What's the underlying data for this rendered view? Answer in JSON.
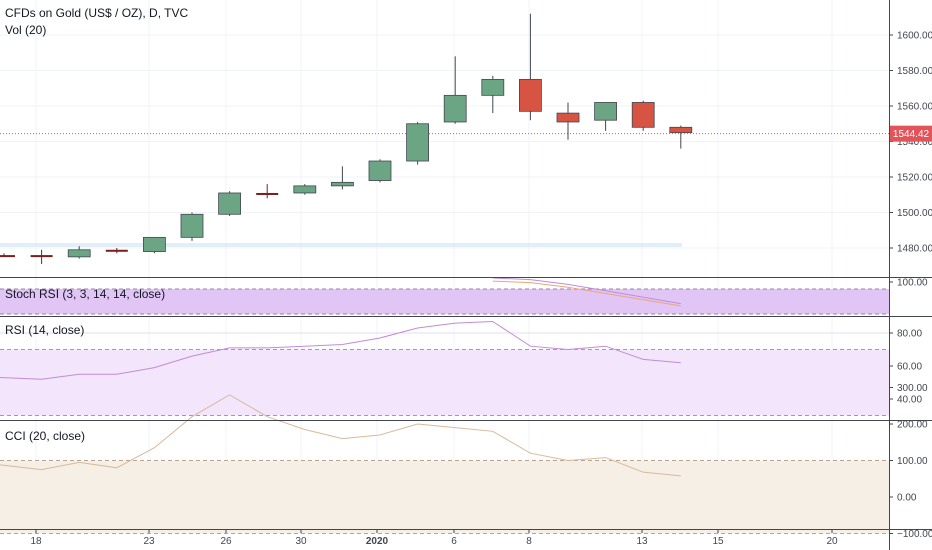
{
  "header": {
    "symbol_title": "CFDs on Gold (US$ / OZ), D, TVC",
    "vol_label": "Vol (20)"
  },
  "price_badge": "1544.42",
  "colors": {
    "up": "#6ba583",
    "down": "#d75442",
    "doji": "#7a1e1e",
    "stoch_band": "#e1c5f5",
    "rsi_band": "#f3e5fb",
    "rsi_line": "#c38bd6",
    "cci_band": "#f5efe6",
    "cci_line": "#d9b99b",
    "last_price": "#e3545a"
  },
  "chart_data": [
    {
      "type": "candlestick",
      "title": "CFDs on Gold (US$ / OZ), D, TVC",
      "x_ticks": [
        "18",
        "23",
        "26",
        "30",
        "2020",
        "6",
        "8",
        "13",
        "15",
        "20"
      ],
      "y_ticks": [
        "1480.00",
        "1500.00",
        "1520.00",
        "1540.00",
        "1560.00",
        "1580.00",
        "1600.00"
      ],
      "ylim": [
        1470,
        1618
      ],
      "last_price": 1544.42,
      "candles": [
        {
          "o": 1476,
          "h": 1477,
          "l": 1475,
          "c": 1476
        },
        {
          "o": 1475,
          "h": 1479,
          "l": 1471,
          "c": 1476
        },
        {
          "o": 1475,
          "h": 1481,
          "l": 1474,
          "c": 1479
        },
        {
          "o": 1478,
          "h": 1480,
          "l": 1477,
          "c": 1479
        },
        {
          "o": 1478,
          "h": 1486,
          "l": 1477,
          "c": 1486
        },
        {
          "o": 1486,
          "h": 1500,
          "l": 1484,
          "c": 1499
        },
        {
          "o": 1499,
          "h": 1512,
          "l": 1498,
          "c": 1511
        },
        {
          "o": 1511,
          "h": 1516,
          "l": 1508,
          "c": 1511
        },
        {
          "o": 1511,
          "h": 1516,
          "l": 1510,
          "c": 1515
        },
        {
          "o": 1515,
          "h": 1526,
          "l": 1513,
          "c": 1517
        },
        {
          "o": 1518,
          "h": 1530,
          "l": 1517,
          "c": 1529
        },
        {
          "o": 1529,
          "h": 1551,
          "l": 1527,
          "c": 1550
        },
        {
          "o": 1551,
          "h": 1588,
          "l": 1550,
          "c": 1566
        },
        {
          "o": 1566,
          "h": 1577,
          "l": 1556,
          "c": 1575
        },
        {
          "o": 1575,
          "h": 1612,
          "l": 1552,
          "c": 1557
        },
        {
          "o": 1556,
          "h": 1562,
          "l": 1541,
          "c": 1551
        },
        {
          "o": 1552,
          "h": 1562,
          "l": 1546,
          "c": 1562
        },
        {
          "o": 1562,
          "h": 1563,
          "l": 1546,
          "c": 1548
        },
        {
          "o": 1548,
          "h": 1549,
          "l": 1536,
          "c": 1545
        }
      ]
    },
    {
      "type": "line",
      "title": "Stoch RSI (3, 3, 14, 14, close)",
      "y_ticks": [
        "100.00"
      ],
      "values": [
        null,
        null,
        null,
        null,
        null,
        null,
        null,
        null,
        null,
        null,
        null,
        null,
        null,
        100,
        99,
        96,
        92,
        88,
        84
      ]
    },
    {
      "type": "line",
      "title": "RSI (14, close)",
      "y_ticks": [
        "40.00",
        "60.00",
        "80.00"
      ],
      "ylim": [
        30,
        87
      ],
      "band": [
        30,
        70
      ],
      "values": [
        53,
        52,
        55,
        55,
        59,
        66,
        71,
        71,
        72,
        73,
        77,
        83,
        86,
        87,
        72,
        70,
        72,
        64,
        62
      ]
    },
    {
      "type": "line",
      "title": "CCI (20, close)",
      "y_ticks": [
        "−100.00",
        "0.00",
        "100.00",
        "200.00",
        "300.00"
      ],
      "ylim": [
        -115,
        305
      ],
      "band": [
        -100,
        100
      ],
      "values": [
        88,
        75,
        95,
        80,
        135,
        220,
        280,
        220,
        185,
        160,
        170,
        200,
        190,
        180,
        120,
        100,
        108,
        68,
        58
      ]
    }
  ]
}
